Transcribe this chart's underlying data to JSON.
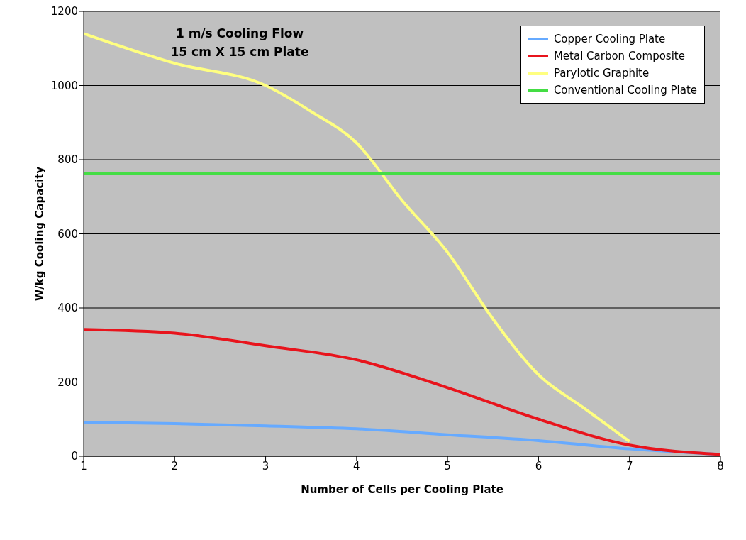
{
  "chart_data": {
    "type": "line",
    "title": "1 m/s Cooling Flow",
    "subtitle": "15 cm X 15 cm Plate",
    "xlabel": "Number of Cells per Cooling Plate",
    "ylabel": "W/kg Cooling Capacity",
    "xlim": [
      1,
      8
    ],
    "xticks": [
      1,
      2,
      3,
      4,
      5,
      6,
      7,
      8
    ],
    "ylim": [
      0,
      1200
    ],
    "yticks": [
      0,
      200,
      400,
      600,
      800,
      1000,
      1200
    ],
    "grid": "y",
    "legend": "top right",
    "marker": "none",
    "line_style": "solid",
    "series": [
      {
        "name": "Copper Cooling Plate",
        "color": "#66aaff",
        "x": [
          1,
          2,
          3,
          4,
          5,
          6,
          7,
          8
        ],
        "values": [
          92,
          88,
          82,
          74,
          58,
          42,
          20,
          5
        ]
      },
      {
        "name": "Metal Carbon Composite",
        "color": "#e8141c",
        "x": [
          1,
          2,
          3,
          4,
          5,
          6,
          7,
          8
        ],
        "values": [
          342,
          332,
          298,
          260,
          185,
          100,
          30,
          5
        ]
      },
      {
        "name": "Parylotic Graphite",
        "color": "#ffff80",
        "x": [
          1,
          2,
          3,
          3.5,
          4,
          4.5,
          5,
          5.5,
          6,
          6.5,
          7
        ],
        "values": [
          1140,
          1060,
          1000,
          930,
          845,
          690,
          550,
          370,
          220,
          130,
          40
        ]
      },
      {
        "name": "Conventional Cooling Plate",
        "color": "#44dd44",
        "x": [
          1,
          8
        ],
        "values": [
          762,
          762
        ]
      }
    ]
  }
}
